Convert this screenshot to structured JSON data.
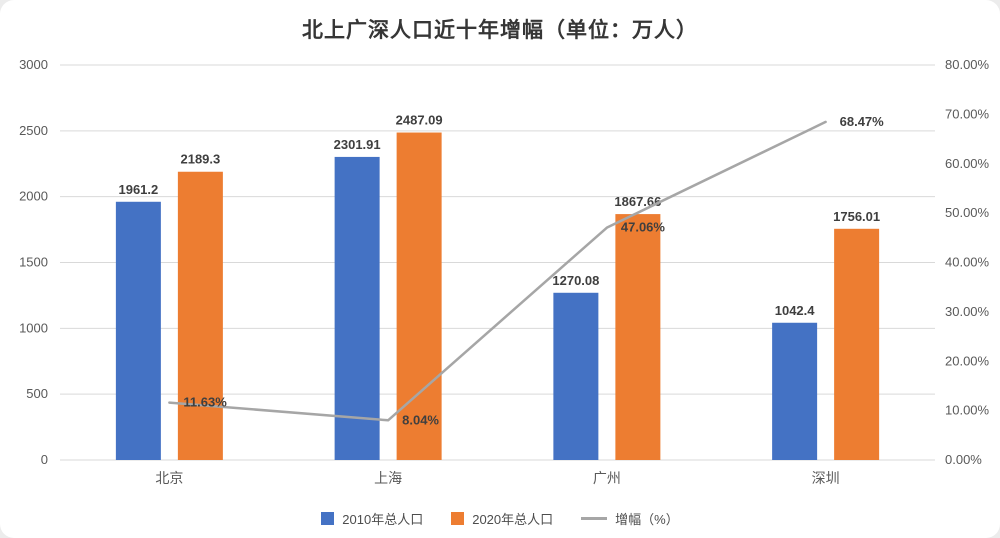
{
  "title": "北上广深人口近十年增幅（单位：万人）",
  "legend": [
    {
      "label": "2010年总人口",
      "color": "#4472C4",
      "type": "square"
    },
    {
      "label": "2020年总人口",
      "color": "#ED7D31",
      "type": "square"
    },
    {
      "label": "增幅（%）",
      "color": "#A6A6A6",
      "type": "line"
    }
  ],
  "chart_data": {
    "type": "bar+line",
    "title": "北上广深人口近十年增幅（单位：万人）",
    "categories": [
      "北京",
      "上海",
      "广州",
      "深圳"
    ],
    "series": [
      {
        "name": "2010年总人口",
        "type": "bar",
        "axis": "left",
        "color": "#4472C4",
        "values": [
          1961.2,
          2301.91,
          1270.08,
          1042.4
        ],
        "labels": [
          "1961.2",
          "2301.91",
          "1270.08",
          "1042.4"
        ]
      },
      {
        "name": "2020年总人口",
        "type": "bar",
        "axis": "left",
        "color": "#ED7D31",
        "values": [
          2189.3,
          2487.09,
          1867.66,
          1756.01
        ],
        "labels": [
          "2189.3",
          "2487.09",
          "1867.66",
          "1756.01"
        ]
      },
      {
        "name": "增幅（%）",
        "type": "line",
        "axis": "right",
        "color": "#A6A6A6",
        "values": [
          11.63,
          8.04,
          47.06,
          68.47
        ],
        "labels": [
          "11.63%",
          "8.04%",
          "47.06%",
          "68.47%"
        ]
      }
    ],
    "left_axis": {
      "min": 0,
      "max": 3000,
      "step": 500,
      "ticks": [
        "0",
        "500",
        "1000",
        "1500",
        "2000",
        "2500",
        "3000"
      ]
    },
    "right_axis": {
      "min": 0,
      "max": 80,
      "step": 10,
      "ticks": [
        "0.00%",
        "10.00%",
        "20.00%",
        "30.00%",
        "40.00%",
        "50.00%",
        "60.00%",
        "70.00%",
        "80.00%"
      ]
    },
    "grid": true,
    "legend_position": "bottom",
    "colors": {
      "grid": "#d9d9d9",
      "tick_text": "#595959",
      "data_label": "#3f3f3f"
    }
  }
}
